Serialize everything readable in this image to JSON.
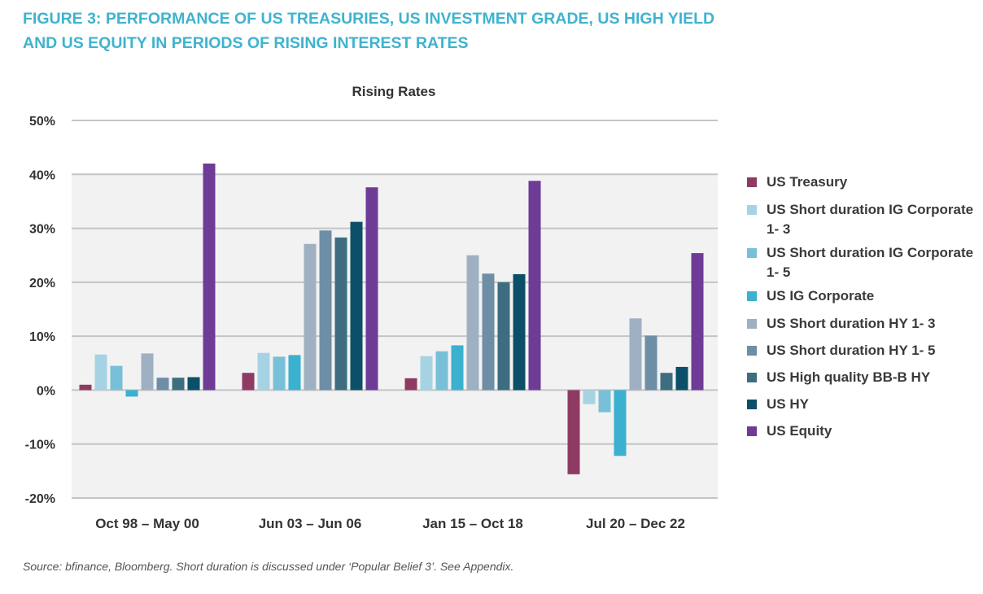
{
  "figure": {
    "title_line1": "FIGURE 3: PERFORMANCE OF US TREASURIES, US INVESTMENT GRADE, US HIGH YIELD",
    "title_line2": "AND US EQUITY IN PERIODS OF RISING INTEREST RATES",
    "source": "Source: bfinance, Bloomberg. Short duration is discussed under ‘Popular Belief 3’. See Appendix."
  },
  "chart_data": {
    "type": "bar",
    "title": "Rising Rates",
    "categories": [
      "Oct 98 – May 00",
      "Jun 03 – Jun 06",
      "Jan 15 – Oct 18",
      "Jul 20 – Dec 22"
    ],
    "ylim": [
      -20,
      50
    ],
    "yticks": [
      50,
      40,
      30,
      20,
      10,
      0,
      -10,
      -20
    ],
    "ytick_labels": [
      "50%",
      "40%",
      "30%",
      "20%",
      "10%",
      "0%",
      "-10%",
      "-20%"
    ],
    "grid": true,
    "legend_position": "right",
    "series": [
      {
        "name": "US Treasury",
        "color": "#8e3a63",
        "values": [
          1.0,
          3.2,
          2.2,
          -15.6
        ]
      },
      {
        "name": "US Short duration IG Corporate 1- 3",
        "color": "#a6d3e3",
        "values": [
          6.6,
          6.9,
          6.3,
          -2.6
        ]
      },
      {
        "name": "US Short duration IG Corporate 1- 5",
        "color": "#78c0d8",
        "values": [
          4.5,
          6.2,
          7.2,
          -4.1
        ]
      },
      {
        "name": "US IG Corporate",
        "color": "#3bb0cf",
        "values": [
          -1.2,
          6.5,
          8.3,
          -12.2
        ]
      },
      {
        "name": "US Short duration HY 1- 3",
        "color": "#9fb0c2",
        "values": [
          6.8,
          27.1,
          25.0,
          13.3
        ]
      },
      {
        "name": "US Short duration HY 1- 5",
        "color": "#6e8ea6",
        "values": [
          2.3,
          29.6,
          21.6,
          10.1
        ]
      },
      {
        "name": "US High quality BB-B HY",
        "color": "#3e6d82",
        "values": [
          2.3,
          28.3,
          20.0,
          3.2
        ]
      },
      {
        "name": "US HY",
        "color": "#0b5068",
        "values": [
          2.4,
          31.2,
          21.5,
          4.3
        ]
      },
      {
        "name": "US Equity",
        "color": "#6e3b96",
        "values": [
          42.0,
          37.6,
          38.8,
          25.4
        ]
      }
    ]
  }
}
